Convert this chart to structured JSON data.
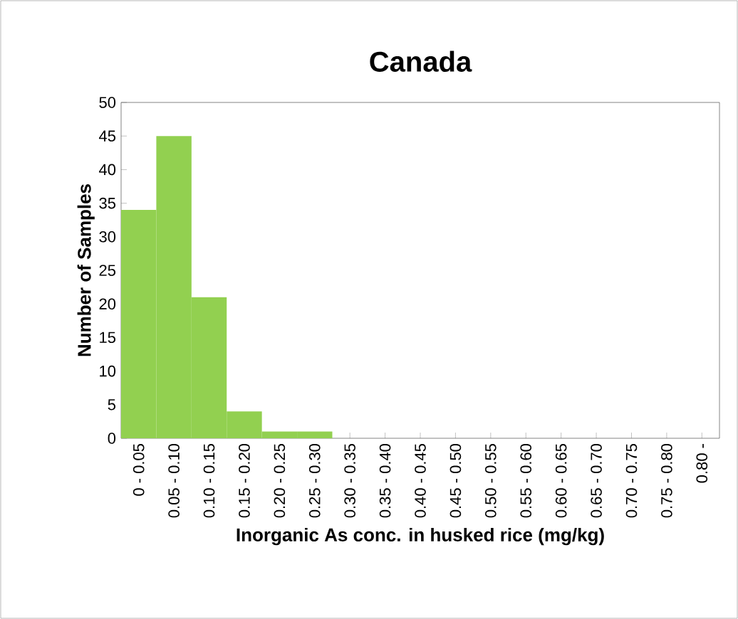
{
  "chart_data": {
    "type": "bar",
    "title": "Canada",
    "xlabel": "Inorganic As conc. in husked rice (mg/kg)",
    "ylabel": "Number of Samples",
    "categories": [
      "0 - 0.05",
      "0.05 - 0.10",
      "0.10 - 0.15",
      "0.15 - 0.20",
      "0.20 - 0.25",
      "0.25 - 0.30",
      "0.30 - 0.35",
      "0.35 - 0.40",
      "0.40 - 0.45",
      "0.45 - 0.50",
      "0.50 - 0.55",
      "0.55 - 0.60",
      "0.60 - 0.65",
      "0.65 - 0.70",
      "0.70 - 0.75",
      "0.75 - 0.80",
      "0.80 -"
    ],
    "values": [
      34,
      45,
      21,
      4,
      1,
      1,
      0,
      0,
      0,
      0,
      0,
      0,
      0,
      0,
      0,
      0,
      0
    ],
    "color": "#92d050",
    "ylim": [
      0,
      50
    ],
    "yticks": [
      0,
      5,
      10,
      15,
      20,
      25,
      30,
      35,
      40,
      45,
      50
    ],
    "grid": false
  }
}
